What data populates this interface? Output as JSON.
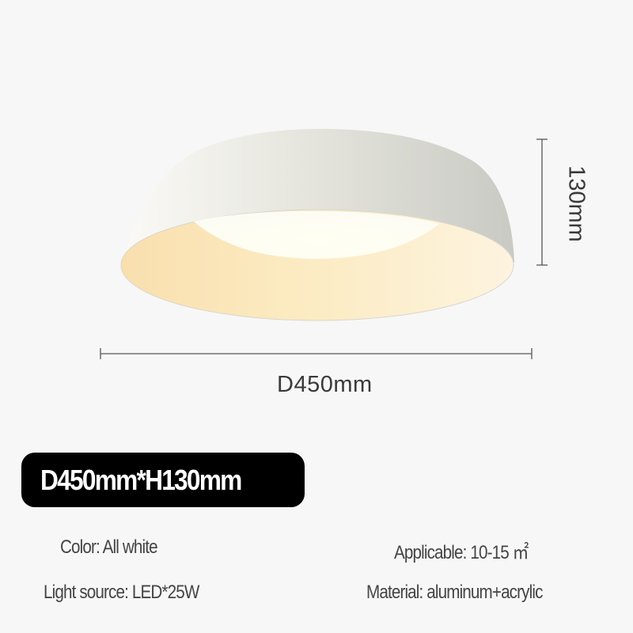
{
  "product": {
    "colors": {
      "background": "#f7f7f7",
      "shell": "#e3e3dd",
      "inner_glow": "#fbe6b8",
      "badge": "#000000"
    },
    "dimensions": {
      "diameter_label": "D450mm",
      "height_label": "130mm"
    },
    "badge_text": "D450mm*H130mm",
    "specs": {
      "color": "Color: All white",
      "applicable": "Applicable: 10-15 ㎡",
      "light_source": "Light source: LED*25W",
      "material": "Material: aluminum+acrylic"
    }
  }
}
